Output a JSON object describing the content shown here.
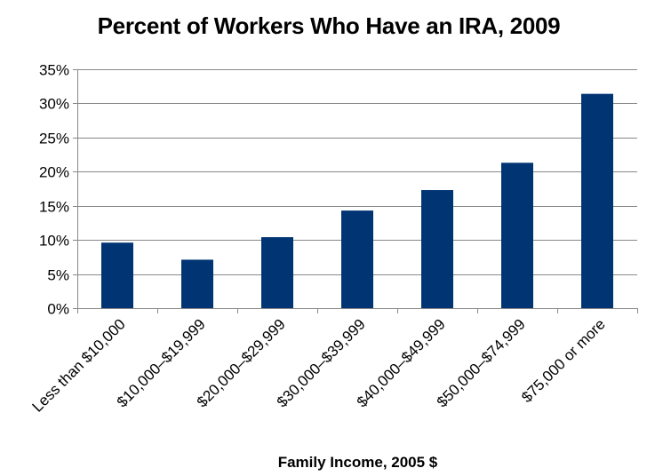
{
  "chart_data": {
    "type": "bar",
    "title": "Percent of Workers Who Have an IRA, 2009",
    "xlabel": "Family Income, 2005 $",
    "ylabel": "",
    "categories": [
      "Less than $10,000",
      "$10,000–$19,999",
      "$20,000–$29,999",
      "$30,000–$39,999",
      "$40,000–$49,999",
      "$50,000–$74,999",
      "$75,000 or more"
    ],
    "values": [
      9.6,
      7.1,
      10.4,
      14.3,
      17.3,
      21.3,
      31.4
    ],
    "ylim": [
      0,
      35
    ],
    "yticks": [
      "0%",
      "5%",
      "10%",
      "15%",
      "20%",
      "25%",
      "30%",
      "35%"
    ],
    "ytick_values": [
      0,
      5,
      10,
      15,
      20,
      25,
      30,
      35
    ],
    "grid": true,
    "legend": "none",
    "bar_color": "#003473",
    "grid_color": "#888888"
  }
}
